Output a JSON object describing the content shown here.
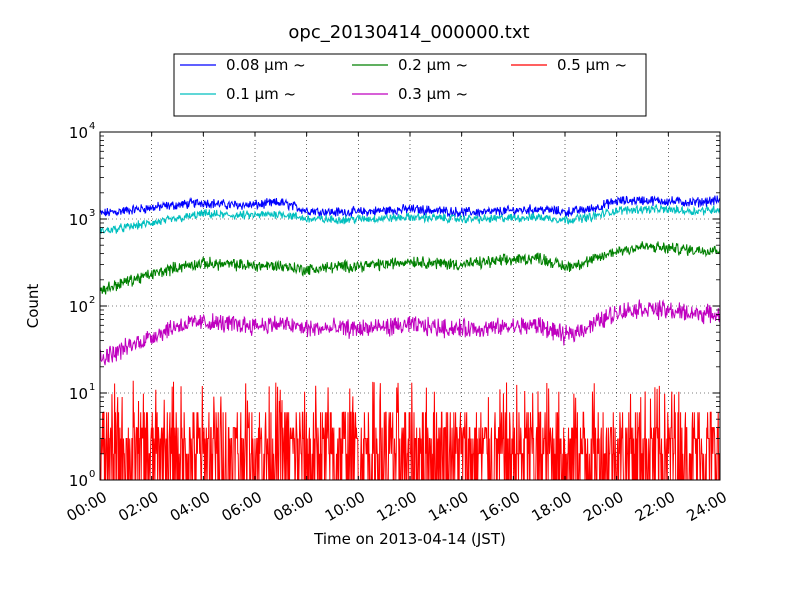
{
  "chart_data": {
    "type": "line",
    "title": "opc_20130414_000000.txt",
    "xlabel": "Time on 2013-04-14 (JST)",
    "ylabel": "Count",
    "yscale": "log",
    "xlim": [
      "00:00",
      "24:00"
    ],
    "ylim": [
      1,
      10000
    ],
    "grid": true,
    "legend_position": "top, outside plot",
    "x_tick_labels": [
      "00:00",
      "02:00",
      "04:00",
      "06:00",
      "08:00",
      "10:00",
      "12:00",
      "14:00",
      "16:00",
      "18:00",
      "20:00",
      "22:00",
      "24:00"
    ],
    "y_tick_labels": [
      {
        "base": "10",
        "exp": "0"
      },
      {
        "base": "10",
        "exp": "1"
      },
      {
        "base": "10",
        "exp": "2"
      },
      {
        "base": "10",
        "exp": "3"
      },
      {
        "base": "10",
        "exp": "4"
      }
    ],
    "series": [
      {
        "name": "0.08 µm ~",
        "color": "#0000ff",
        "x": [
          "00:00",
          "01:00",
          "02:00",
          "03:00",
          "04:00",
          "05:00",
          "06:00",
          "07:00",
          "08:00",
          "09:00",
          "10:00",
          "11:00",
          "12:00",
          "13:00",
          "14:00",
          "15:00",
          "16:00",
          "17:00",
          "18:00",
          "19:00",
          "20:00",
          "21:00",
          "22:00",
          "23:00",
          "24:00"
        ],
        "values": [
          1150,
          1250,
          1350,
          1450,
          1550,
          1450,
          1450,
          1550,
          1250,
          1200,
          1200,
          1250,
          1300,
          1250,
          1200,
          1200,
          1250,
          1300,
          1200,
          1300,
          1600,
          1650,
          1600,
          1550,
          1650
        ]
      },
      {
        "name": "0.1 µm ~",
        "color": "#00bfbf",
        "x": [
          "00:00",
          "01:00",
          "02:00",
          "03:00",
          "04:00",
          "05:00",
          "06:00",
          "07:00",
          "08:00",
          "09:00",
          "10:00",
          "11:00",
          "12:00",
          "13:00",
          "14:00",
          "15:00",
          "16:00",
          "17:00",
          "18:00",
          "19:00",
          "20:00",
          "21:00",
          "22:00",
          "23:00",
          "24:00"
        ],
        "values": [
          720,
          800,
          900,
          1000,
          1150,
          1100,
          1100,
          1150,
          1000,
          980,
          1000,
          1020,
          1050,
          1030,
          1000,
          1000,
          1030,
          1050,
          980,
          1050,
          1250,
          1300,
          1280,
          1230,
          1300
        ]
      },
      {
        "name": "0.2 µm ~",
        "color": "#008000",
        "x": [
          "00:00",
          "01:00",
          "02:00",
          "03:00",
          "04:00",
          "05:00",
          "06:00",
          "07:00",
          "08:00",
          "09:00",
          "10:00",
          "11:00",
          "12:00",
          "13:00",
          "14:00",
          "15:00",
          "16:00",
          "17:00",
          "18:00",
          "19:00",
          "20:00",
          "21:00",
          "22:00",
          "23:00",
          "24:00"
        ],
        "values": [
          150,
          190,
          230,
          280,
          310,
          300,
          290,
          290,
          260,
          280,
          290,
          300,
          330,
          310,
          300,
          320,
          340,
          360,
          280,
          330,
          430,
          480,
          460,
          440,
          450
        ]
      },
      {
        "name": "0.3 µm ~",
        "color": "#bf00bf",
        "x": [
          "00:00",
          "01:00",
          "02:00",
          "03:00",
          "04:00",
          "05:00",
          "06:00",
          "07:00",
          "08:00",
          "09:00",
          "10:00",
          "11:00",
          "12:00",
          "13:00",
          "14:00",
          "15:00",
          "16:00",
          "17:00",
          "18:00",
          "19:00",
          "20:00",
          "21:00",
          "22:00",
          "23:00",
          "24:00"
        ],
        "values": [
          25,
          33,
          45,
          60,
          65,
          62,
          60,
          62,
          55,
          55,
          55,
          57,
          60,
          57,
          55,
          55,
          58,
          60,
          45,
          60,
          85,
          95,
          88,
          82,
          80
        ]
      },
      {
        "name": "0.5 µm ~",
        "color": "#ff0000",
        "x": [
          "00:00",
          "01:00",
          "02:00",
          "03:00",
          "04:00",
          "05:00",
          "06:00",
          "07:00",
          "08:00",
          "09:00",
          "10:00",
          "11:00",
          "12:00",
          "13:00",
          "14:00",
          "15:00",
          "16:00",
          "17:00",
          "18:00",
          "19:00",
          "20:00",
          "21:00",
          "22:00",
          "23:00",
          "24:00"
        ],
        "values": [
          3,
          3,
          3,
          3,
          3,
          3,
          3,
          3,
          3,
          3,
          3,
          3,
          3,
          3,
          3,
          3,
          3,
          3,
          3,
          3,
          3,
          3,
          3,
          3,
          3
        ]
      }
    ]
  }
}
